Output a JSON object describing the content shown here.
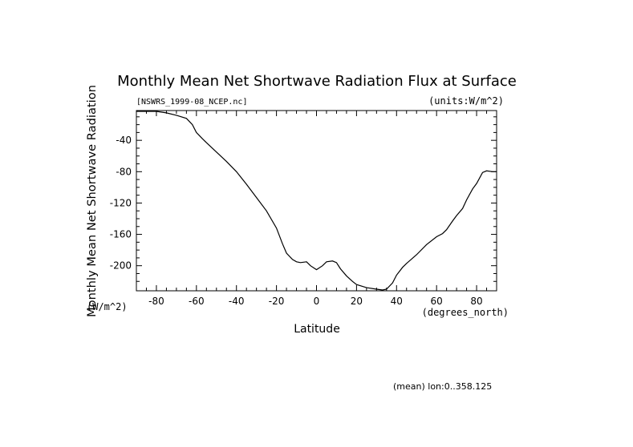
{
  "chart_data": {
    "type": "line",
    "title": "Monthly Mean Net Shortwave Radiation Flux at Surface",
    "file_label": "[NSWRS_1999-08_NCEP.nc]",
    "units_label": "(units:W/m^2)",
    "xlabel": "Latitude",
    "x_unit": "(degrees_north)",
    "ylabel": "Monthly Mean Net Shortwave Radiation",
    "y_unit": "(W/m^2)",
    "footnote": "(mean) lon:0..358.125",
    "xlim": [
      -90,
      90
    ],
    "ylim": [
      -232,
      -2
    ],
    "x_ticks": [
      -80,
      -60,
      -40,
      -20,
      0,
      20,
      40,
      60,
      80
    ],
    "y_ticks": [
      -40,
      -80,
      -120,
      -160,
      -200
    ],
    "grid": false,
    "series": [
      {
        "x": [
          -90,
          -85,
          -80,
          -75,
          -70,
          -65,
          -62,
          -60,
          -57,
          -55,
          -50,
          -45,
          -40,
          -35,
          -30,
          -25,
          -20,
          -17,
          -15,
          -12,
          -10,
          -8,
          -5,
          -3,
          0,
          3,
          5,
          8,
          10,
          12,
          15,
          18,
          20,
          25,
          30,
          33,
          35,
          38,
          40,
          43,
          45,
          50,
          55,
          60,
          63,
          65,
          68,
          70,
          73,
          75,
          78,
          80,
          83,
          85,
          88,
          90
        ],
        "y": [
          -3,
          -3,
          -3,
          -5,
          -8,
          -12,
          -20,
          -30,
          -38,
          -43,
          -55,
          -67,
          -80,
          -96,
          -113,
          -130,
          -152,
          -172,
          -184,
          -192,
          -195,
          -196,
          -195,
          -200,
          -205,
          -200,
          -195,
          -194,
          -196,
          -204,
          -213,
          -220,
          -224,
          -228,
          -230,
          -231,
          -230,
          -222,
          -212,
          -202,
          -197,
          -186,
          -173,
          -163,
          -159,
          -154,
          -143,
          -136,
          -127,
          -116,
          -102,
          -95,
          -81,
          -79,
          -80,
          -80
        ]
      }
    ]
  }
}
